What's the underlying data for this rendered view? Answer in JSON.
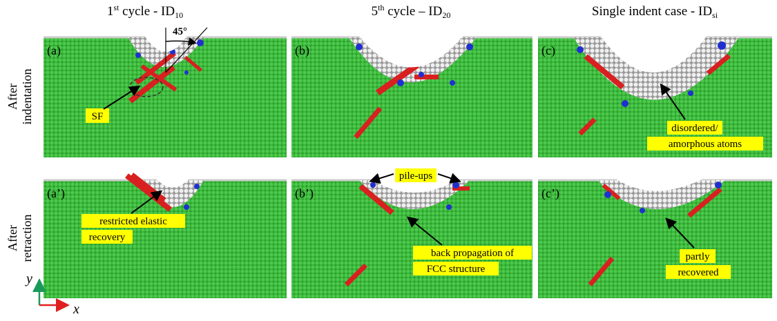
{
  "columns": [
    {
      "prefix": "1",
      "sup": "st",
      "middle": " cycle - ID",
      "sub": "10"
    },
    {
      "prefix": "5",
      "sup": "th",
      "middle": " cycle – ID",
      "sub": "20"
    },
    {
      "prefix": "Single indent case - ID",
      "sub": "si"
    }
  ],
  "rows": [
    {
      "line1": "After",
      "line2": "indentation"
    },
    {
      "line1": "After",
      "line2": "retraction"
    }
  ],
  "panels": [
    "(a)",
    "(b)",
    "(c)",
    "(a’)",
    "(b’)",
    "(c’)"
  ],
  "annotations": {
    "angle": "45°",
    "sf": "SF",
    "disordered": [
      "disordered/",
      "amorphous atoms"
    ],
    "pileups": "pile-ups",
    "restricted": [
      "restricted elastic",
      "recovery"
    ],
    "back": [
      "back propagation of",
      "FCC structure"
    ],
    "partly": [
      "partly",
      "recovered"
    ]
  },
  "axes": {
    "y": "y",
    "x": "x"
  }
}
